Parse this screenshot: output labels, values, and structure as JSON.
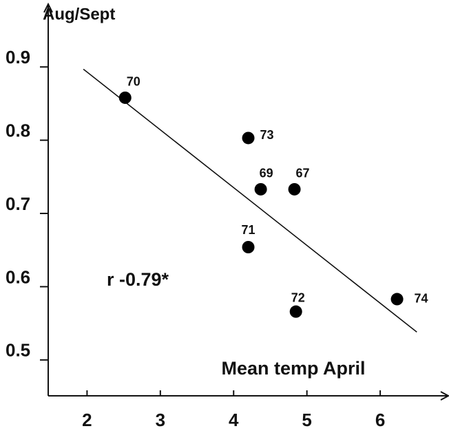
{
  "chart_data": {
    "type": "scatter",
    "y_label": "Aug/Sept",
    "x_label": "Mean temp April",
    "annotation": "r  -0.79*",
    "x": [
      2.52,
      4.2,
      4.37,
      4.83,
      4.2,
      4.85,
      6.23
    ],
    "series": [
      {
        "values": [
          0.858,
          0.803,
          0.733,
          0.733,
          0.654,
          0.566,
          0.583
        ],
        "color": "#000000"
      }
    ],
    "point_labels": [
      "70",
      "73",
      "69",
      "67",
      "71",
      "72",
      "74"
    ],
    "trend_line": {
      "x": [
        1.95,
        6.5
      ],
      "y": [
        0.897,
        0.538
      ]
    },
    "xlim": [
      1.47,
      6.92
    ],
    "ylim": [
      0.451,
      0.982
    ],
    "xticks": [
      2,
      3,
      4,
      5,
      6
    ],
    "yticks": [
      0.5,
      0.6,
      0.7,
      0.8,
      0.9
    ],
    "grid": false
  }
}
